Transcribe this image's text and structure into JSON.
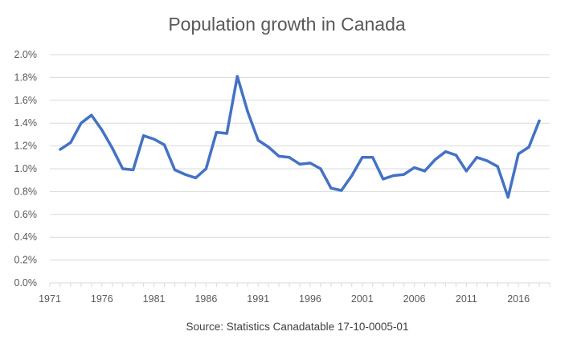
{
  "chart_data": {
    "type": "line",
    "title": "Population growth in Canada",
    "source": "Source: Statistics Canadatable 17-10-0005-01",
    "xlabel": "",
    "ylabel": "",
    "x_tick_labels": [
      "1971",
      "1976",
      "1981",
      "1986",
      "1991",
      "1996",
      "2001",
      "2006",
      "2011",
      "2016"
    ],
    "y_tick_labels": [
      "0.0%",
      "0.2%",
      "0.4%",
      "0.6%",
      "0.8%",
      "1.0%",
      "1.2%",
      "1.4%",
      "1.6%",
      "1.8%",
      "2.0%"
    ],
    "xlim": [
      1971,
      2019
    ],
    "ylim": [
      0,
      2.0
    ],
    "grid": true,
    "line_color": "#4472c4",
    "series": [
      {
        "x": [
          1972,
          1973,
          1974,
          1975,
          1976,
          1977,
          1978,
          1979,
          1980,
          1981,
          1982,
          1983,
          1984,
          1985,
          1986,
          1987,
          1988,
          1989,
          1990,
          1991,
          1992,
          1993,
          1994,
          1995,
          1996,
          1997,
          1998,
          1999,
          2000,
          2001,
          2002,
          2003,
          2004,
          2005,
          2006,
          2007,
          2008,
          2009,
          2010,
          2011,
          2012,
          2013,
          2014,
          2015,
          2016,
          2017,
          2018
        ],
        "values": [
          1.17,
          1.23,
          1.4,
          1.47,
          1.34,
          1.18,
          1.0,
          0.99,
          1.29,
          1.26,
          1.21,
          0.99,
          0.95,
          0.92,
          1.0,
          1.32,
          1.31,
          1.81,
          1.5,
          1.25,
          1.19,
          1.11,
          1.1,
          1.04,
          1.05,
          1.0,
          0.83,
          0.81,
          0.94,
          1.1,
          1.1,
          0.91,
          0.94,
          0.95,
          1.01,
          0.98,
          1.08,
          1.15,
          1.12,
          0.98,
          1.1,
          1.07,
          1.02,
          0.75,
          1.13,
          1.19,
          1.42
        ]
      }
    ]
  }
}
